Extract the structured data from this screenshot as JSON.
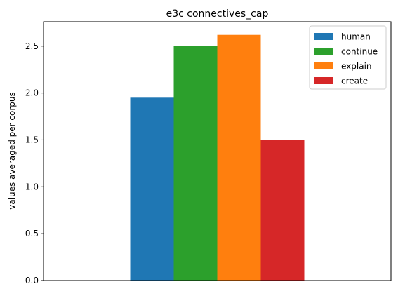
{
  "chart_data": {
    "type": "bar",
    "title": "e3c connectives_cap",
    "xlabel": "",
    "ylabel": "values averaged per corpus",
    "ylim": [
      0,
      2.76
    ],
    "yticks": [
      0.0,
      0.5,
      1.0,
      1.5,
      2.0,
      2.5
    ],
    "ytick_labels": [
      "0.0",
      "0.5",
      "1.0",
      "1.5",
      "2.0",
      "2.5"
    ],
    "categories": [
      ""
    ],
    "grid": false,
    "legend_position": "top-right",
    "series": [
      {
        "name": "human",
        "color": "#1f77b4",
        "values": [
          1.95
        ]
      },
      {
        "name": "continue",
        "color": "#2ca02c",
        "values": [
          2.5
        ]
      },
      {
        "name": "explain",
        "color": "#ff7f0e",
        "values": [
          2.62
        ]
      },
      {
        "name": "create",
        "color": "#d62728",
        "values": [
          1.5
        ]
      }
    ]
  }
}
